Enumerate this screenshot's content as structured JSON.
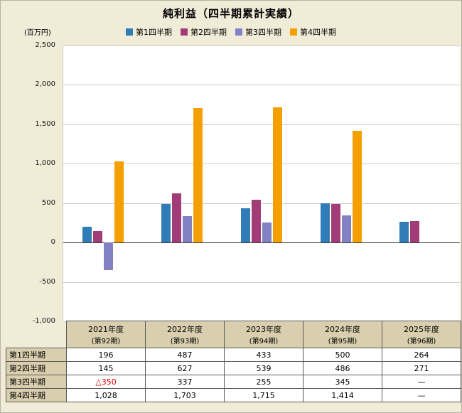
{
  "title": "純利益（四半期累計実績）",
  "unit_label": "(百万円)",
  "legend": [
    {
      "label": "第1四半期",
      "color": "#2f7cb8"
    },
    {
      "label": "第2四半期",
      "color": "#a23c78"
    },
    {
      "label": "第3四半期",
      "color": "#8181c3"
    },
    {
      "label": "第4四半期",
      "color": "#f5a002"
    }
  ],
  "chart_data": {
    "type": "bar",
    "title": "純利益（四半期累計実績）",
    "ylabel": "(百万円)",
    "ylim": [
      -1000,
      2500
    ],
    "ytick_interval": 500,
    "yticks": [
      "2,500",
      "2,000",
      "1,500",
      "1,000",
      "500",
      "0",
      "-500",
      "-1,000"
    ],
    "grid": true,
    "legend_position": "top",
    "categories": [
      "2021年度(第92期)",
      "2022年度(第93期)",
      "2023年度(第94期)",
      "2024年度(第95期)",
      "2025年度(第96期)"
    ],
    "series": [
      {
        "name": "第1四半期",
        "color": "#2f7cb8",
        "values": [
          196,
          487,
          433,
          500,
          264
        ]
      },
      {
        "name": "第2四半期",
        "color": "#a23c78",
        "values": [
          145,
          627,
          539,
          486,
          271
        ]
      },
      {
        "name": "第3四半期",
        "color": "#8181c3",
        "values": [
          -350,
          337,
          255,
          345,
          null
        ]
      },
      {
        "name": "第4四半期",
        "color": "#f5a002",
        "values": [
          1028,
          1703,
          1715,
          1414,
          null
        ]
      }
    ]
  },
  "table": {
    "col_headers": [
      {
        "line1": "2021年度",
        "line2": "(第92期)"
      },
      {
        "line1": "2022年度",
        "line2": "(第93期)"
      },
      {
        "line1": "2023年度",
        "line2": "(第94期)"
      },
      {
        "line1": "2024年度",
        "line2": "(第95期)"
      },
      {
        "line1": "2025年度",
        "line2": "(第96期)"
      }
    ],
    "rows": [
      {
        "label": "第1四半期",
        "values": [
          "196",
          "487",
          "433",
          "500",
          "264"
        ]
      },
      {
        "label": "第2四半期",
        "values": [
          "145",
          "627",
          "539",
          "486",
          "271"
        ]
      },
      {
        "label": "第3四半期",
        "values": [
          "△350",
          "337",
          "255",
          "345",
          "—"
        ]
      },
      {
        "label": "第4四半期",
        "values": [
          "1,028",
          "1,703",
          "1,715",
          "1,414",
          "—"
        ]
      }
    ]
  }
}
